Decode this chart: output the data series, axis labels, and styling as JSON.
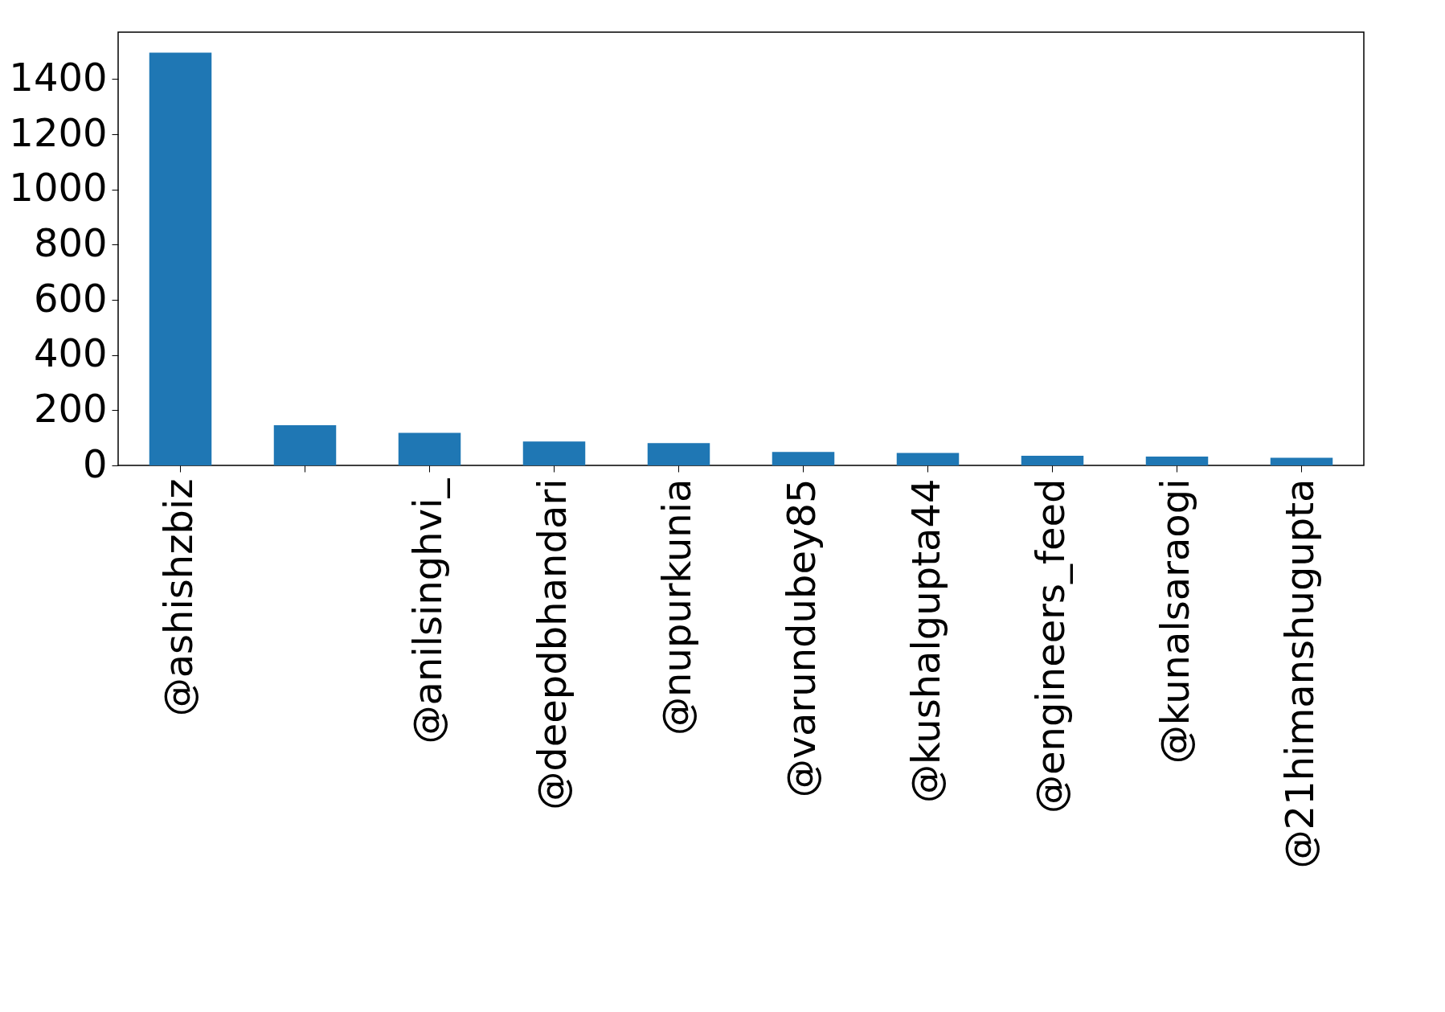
{
  "chart_data": {
    "type": "bar",
    "categories": [
      "@ashishzbiz",
      null,
      "@anilsinghvi_",
      "@deepdbhandari",
      "@nupurkunia",
      "@varundubey85",
      "@kushalgupta44",
      "@engineers_feed",
      "@kunalsaraogi",
      "@21himanshugupta"
    ],
    "values": [
      1496,
      146,
      118,
      87,
      81,
      49,
      45,
      35,
      32,
      28
    ],
    "color": "#1f77b4",
    "ylim": [
      0,
      1570
    ],
    "yticks": [
      0,
      200,
      400,
      600,
      800,
      1000,
      1200,
      1400
    ],
    "grid": false
  }
}
